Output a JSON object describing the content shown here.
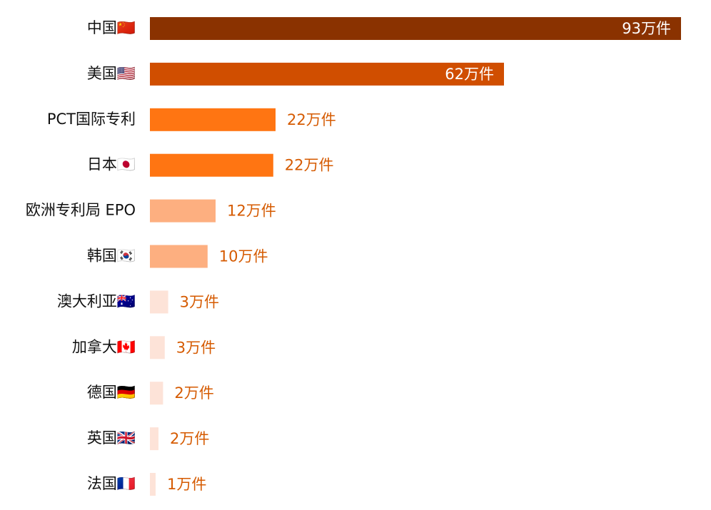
{
  "chart_data": {
    "type": "hbar",
    "categories": [
      "中国🇨🇳",
      "美国🇺🇸",
      "PCT国际专利",
      "日本🇯🇵",
      "欧洲专利局 EPO",
      "韩国🇰🇷",
      "澳大利亚🇦🇺",
      "加拿大🇨🇦",
      "德国🇩🇪",
      "英国🇬🇧",
      "法国🇫🇷"
    ],
    "values": [
      93,
      62,
      22,
      21.6,
      11.5,
      10.1,
      3.2,
      2.6,
      2.3,
      1.5,
      1
    ],
    "value_labels": [
      "93万件",
      "62万件",
      "22万件",
      "22万件",
      "12万件",
      "10万件",
      "3万件",
      "3万件",
      "2万件",
      "2万件",
      "1万件"
    ],
    "colors": [
      "#8a3200",
      "#d04e00",
      "#ff7512",
      "#ff7512",
      "#fdaf80",
      "#fdaf80",
      "#fde3d8",
      "#fde3d8",
      "#fde3d8",
      "#fde3d8",
      "#fde3d8"
    ]
  }
}
